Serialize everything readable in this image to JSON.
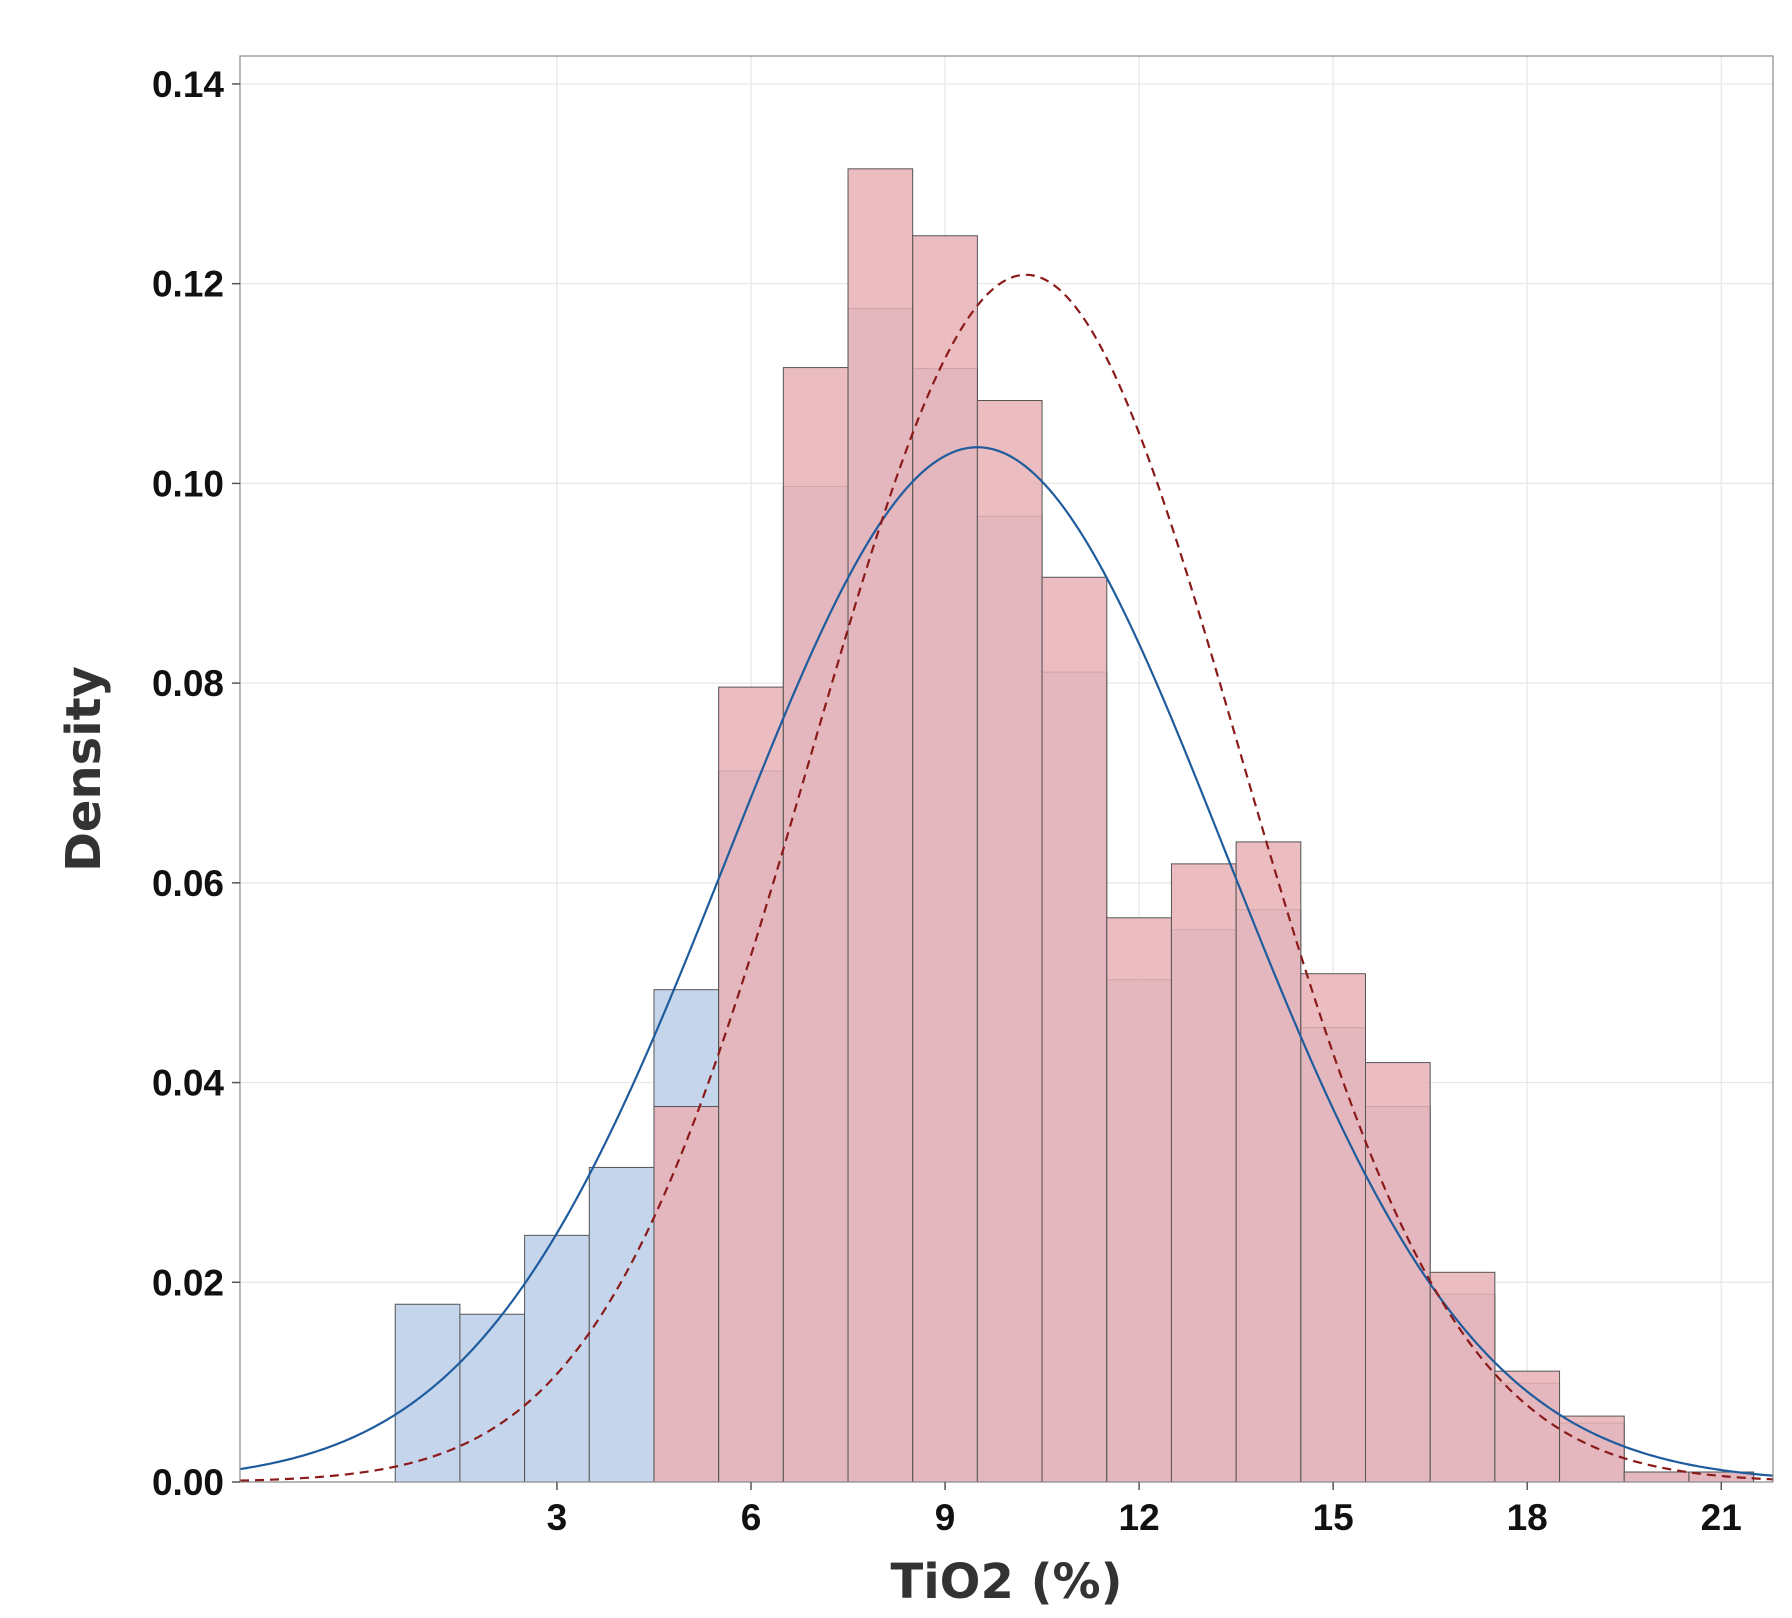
{
  "chart_data": {
    "type": "bar",
    "title": "",
    "xlabel": "TiO2 (%)",
    "ylabel": "Density",
    "xlim": [
      -1.9,
      21.8
    ],
    "ylim": [
      0,
      0.1428
    ],
    "xticks": [
      3,
      6,
      9,
      12,
      15,
      18,
      21
    ],
    "yticks": [
      0.0,
      0.02,
      0.04,
      0.06,
      0.08,
      0.1,
      0.12,
      0.14
    ],
    "grid": true,
    "legend": "none",
    "bin_width": 1,
    "series": [
      {
        "name": "histogram-blue",
        "color": "#c5d6ec",
        "bin_starts": [
          0.5,
          1.5,
          2.5,
          3.5,
          4.5,
          5.5,
          6.5,
          7.5,
          8.5,
          9.5,
          10.5,
          11.5,
          12.5,
          13.5,
          14.5,
          15.5,
          16.5,
          17.5,
          18.5,
          19.5,
          20.5
        ],
        "values": [
          0.0178,
          0.0168,
          0.0247,
          0.0315,
          0.0493,
          0.0712,
          0.0997,
          0.1175,
          0.1115,
          0.0967,
          0.0811,
          0.0503,
          0.0553,
          0.0573,
          0.0455,
          0.0376,
          0.0188,
          0.0099,
          0.0059,
          0.001,
          0.001
        ]
      },
      {
        "name": "histogram-red",
        "color": "#e7b2b5",
        "bin_starts": [
          4.5,
          5.5,
          6.5,
          7.5,
          8.5,
          9.5,
          10.5,
          11.5,
          12.5,
          13.5,
          14.5,
          15.5,
          16.5,
          17.5,
          18.5,
          19.5,
          20.5
        ],
        "values": [
          0.0376,
          0.0796,
          0.1116,
          0.1315,
          0.1248,
          0.1083,
          0.0906,
          0.0565,
          0.0619,
          0.0641,
          0.0509,
          0.042,
          0.021,
          0.0111,
          0.0066,
          0.001,
          0.001
        ]
      }
    ],
    "curves": [
      {
        "name": "normal-fit-solid",
        "color": "#1f5c9e",
        "style": "solid",
        "mean": 9.5,
        "sd": 3.85
      },
      {
        "name": "normal-fit-dashed",
        "color": "#8b1a1a",
        "style": "dashed",
        "mean": 10.25,
        "sd": 3.3
      }
    ]
  }
}
